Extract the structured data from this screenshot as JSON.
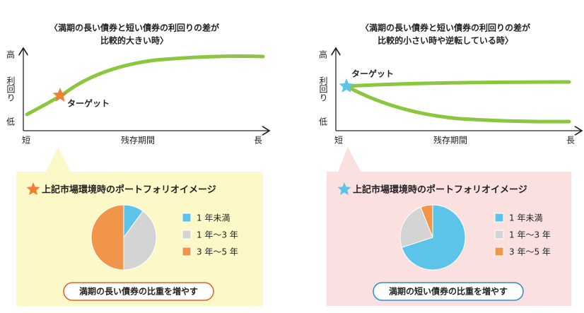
{
  "panels": [
    {
      "title": [
        "〈満期の長い債券と短い債券の利回りの差が",
        "比較的大きい時〉"
      ],
      "axis": {
        "high": "高",
        "ylabel": "利回り",
        "low": "低",
        "short": "短",
        "xlabel": "残存期間",
        "long": "長"
      },
      "target": "ターゲット",
      "heading": "上記市場環境時のポートフォリオイメージ",
      "pie": {
        "series": [
          {
            "name": "1 年未満",
            "color": "#5bc4e8",
            "value": 10
          },
          {
            "name": "1 年〜3 年",
            "color": "#d4d4d4",
            "value": 40
          },
          {
            "name": "3 年〜5 年",
            "color": "#f0954a",
            "value": 50
          }
        ]
      },
      "button": "満期の長い債券の比重を増やす"
    },
    {
      "title": [
        "〈満期の長い債券と短い債券の利回りの差が",
        "比較的小さい時や逆転している時〉"
      ],
      "axis": {
        "high": "高",
        "ylabel": "利回り",
        "low": "低",
        "short": "短",
        "xlabel": "残存期間",
        "long": "長"
      },
      "target": "ターゲット",
      "heading": "上記市場環境時のポートフォリオイメージ",
      "pie": {
        "series": [
          {
            "name": "1 年未満",
            "color": "#5bc4e8",
            "value": 70
          },
          {
            "name": "1 年〜3 年",
            "color": "#d4d4d4",
            "value": 24
          },
          {
            "name": "3 年〜5 年",
            "color": "#f0954a",
            "value": 6
          }
        ]
      },
      "button": "満期の短い債券の比重を増やす"
    }
  ]
}
